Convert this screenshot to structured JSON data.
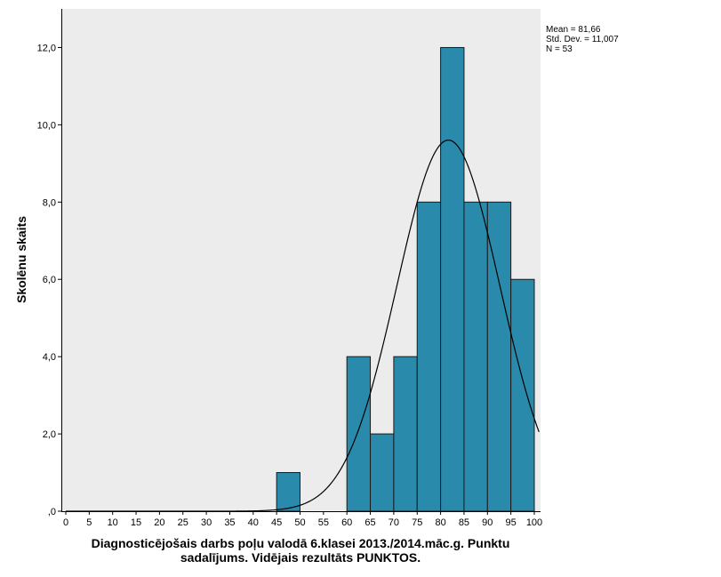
{
  "chart_data": {
    "type": "bar",
    "subtype": "histogram",
    "bins": [
      {
        "from": 45,
        "to": 50,
        "count": 1
      },
      {
        "from": 60,
        "to": 65,
        "count": 4
      },
      {
        "from": 65,
        "to": 70,
        "count": 2
      },
      {
        "from": 70,
        "to": 75,
        "count": 4
      },
      {
        "from": 75,
        "to": 80,
        "count": 8
      },
      {
        "from": 80,
        "to": 85,
        "count": 12
      },
      {
        "from": 85,
        "to": 90,
        "count": 8
      },
      {
        "from": 90,
        "to": 95,
        "count": 8
      },
      {
        "from": 95,
        "to": 100,
        "count": 6
      }
    ],
    "normal_curve": {
      "mean": 81.66,
      "sd": 11.007,
      "n": 53,
      "bin_width": 5
    },
    "xlim": [
      0,
      100
    ],
    "ylim": [
      0,
      13
    ],
    "x_ticks": [
      "0",
      "5",
      "10",
      "15",
      "20",
      "25",
      "30",
      "35",
      "40",
      "45",
      "50",
      "55",
      "60",
      "65",
      "70",
      "75",
      "80",
      "85",
      "90",
      "95",
      "100"
    ],
    "y_ticks": [
      {
        "value": 0,
        "label": ",0"
      },
      {
        "value": 2,
        "label": "2,0"
      },
      {
        "value": 4,
        "label": "4,0"
      },
      {
        "value": 6,
        "label": "6,0"
      },
      {
        "value": 8,
        "label": "8,0"
      },
      {
        "value": 10,
        "label": "10,0"
      },
      {
        "value": 12,
        "label": "12,0"
      }
    ],
    "ylabel": "Skolēnu skaits",
    "xlabel_lines": [
      "Diagnosticējošais darbs poļu valodā 6.klasei 2013./2014.māc.g. Punktu",
      "sadalījums. Vidējais rezultāts PUNKTOS."
    ],
    "stats": [
      "Mean = 81,66",
      "Std. Dev. = 11,007",
      "N = 53"
    ],
    "grid": false,
    "legend": "none",
    "colors": {
      "plot_background": "#ececec",
      "bar_fill": "#2a8aab",
      "bar_stroke": "#1a1a1a",
      "curve": "#000000"
    }
  }
}
